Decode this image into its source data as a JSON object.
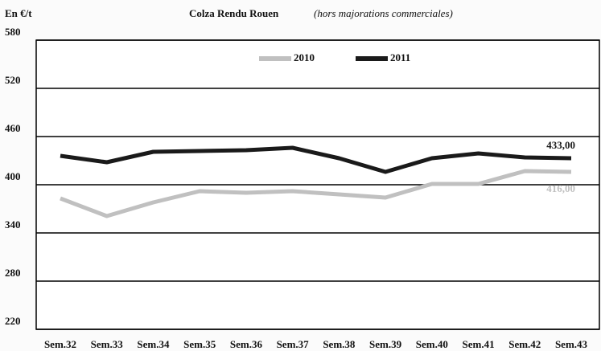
{
  "chart_data": {
    "type": "line",
    "title": "Colza Rendu Rouen",
    "subtitle": "(hors majorations commerciales)",
    "y_label": "En €/t",
    "categories": [
      "Sem.32",
      "Sem.33",
      "Sem.34",
      "Sem.35",
      "Sem.36",
      "Sem.37",
      "Sem.38",
      "Sem.39",
      "Sem.40",
      "Sem.41",
      "Sem.42",
      "Sem.43"
    ],
    "series": [
      {
        "name": "2010",
        "color": "#c0c0c0",
        "values": [
          383,
          361,
          378,
          392,
          390,
          392,
          388,
          384,
          401,
          401,
          417,
          416
        ],
        "value_labels": [
          null,
          null,
          null,
          null,
          null,
          null,
          null,
          null,
          null,
          null,
          null,
          "416,00"
        ]
      },
      {
        "name": "2011",
        "color": "#1a1a1a",
        "values": [
          436,
          428,
          441,
          442,
          443,
          446,
          433,
          416,
          433,
          439,
          434,
          433
        ],
        "value_labels": [
          null,
          null,
          null,
          null,
          null,
          null,
          null,
          null,
          null,
          null,
          null,
          "433,00"
        ]
      }
    ],
    "ylim": [
      220,
      580
    ],
    "yticks": [
      220,
      280,
      340,
      400,
      460,
      520,
      580
    ],
    "grid": true,
    "legend": "top"
  }
}
